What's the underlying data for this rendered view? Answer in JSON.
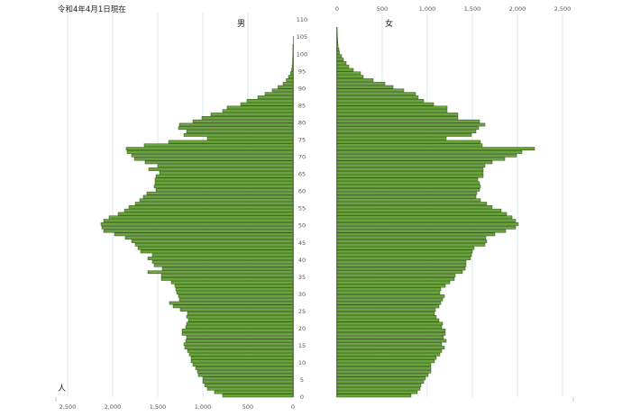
{
  "header": {
    "date_text": "令和4年4月1日現在"
  },
  "labels": {
    "male": "男",
    "female": "女",
    "unit": "人"
  },
  "colors": {
    "bar_fill": "#6aa43c",
    "bar_stroke": "#2e4f16",
    "grid": "#cfe3e8",
    "axis": "#333333"
  },
  "chart_data": {
    "type": "bar",
    "orientation": "horizontal",
    "layout": "population-pyramid",
    "title": "令和4年4月1日現在",
    "unit": "人",
    "x_axis": {
      "ticks": [
        0,
        500,
        1000,
        1500,
        2000,
        2500
      ],
      "range": [
        0,
        2500
      ],
      "grid": true
    },
    "y_axis": {
      "ticks": [
        0,
        5,
        10,
        15,
        20,
        25,
        30,
        35,
        40,
        45,
        50,
        55,
        60,
        65,
        70,
        75,
        80,
        85,
        90,
        95,
        100,
        105,
        110
      ],
      "range": [
        0,
        110
      ]
    },
    "ages": [
      0,
      1,
      2,
      3,
      4,
      5,
      6,
      7,
      8,
      9,
      10,
      11,
      12,
      13,
      14,
      15,
      16,
      17,
      18,
      19,
      20,
      21,
      22,
      23,
      24,
      25,
      26,
      27,
      28,
      29,
      30,
      31,
      32,
      33,
      34,
      35,
      36,
      37,
      38,
      39,
      40,
      41,
      42,
      43,
      44,
      45,
      46,
      47,
      48,
      49,
      50,
      51,
      52,
      53,
      54,
      55,
      56,
      57,
      58,
      59,
      60,
      61,
      62,
      63,
      64,
      65,
      66,
      67,
      68,
      69,
      70,
      71,
      72,
      73,
      74,
      75,
      76,
      77,
      78,
      79,
      80,
      81,
      82,
      83,
      84,
      85,
      86,
      87,
      88,
      89,
      90,
      91,
      92,
      93,
      94,
      95,
      96,
      97,
      98,
      99,
      100,
      101,
      102,
      103,
      104,
      105,
      106,
      107,
      108,
      109,
      110
    ],
    "series": [
      {
        "name": "男",
        "side": "left",
        "values": [
          780,
          870,
          950,
          980,
          1000,
          1000,
          1050,
          1060,
          1080,
          1110,
          1130,
          1130,
          1150,
          1170,
          1200,
          1210,
          1190,
          1180,
          1230,
          1230,
          1190,
          1180,
          1160,
          1180,
          1170,
          1250,
          1330,
          1370,
          1260,
          1270,
          1290,
          1300,
          1310,
          1350,
          1460,
          1460,
          1610,
          1450,
          1540,
          1560,
          1610,
          1560,
          1690,
          1720,
          1750,
          1790,
          1860,
          1980,
          2100,
          2120,
          2130,
          2100,
          2040,
          1940,
          1870,
          1820,
          1750,
          1700,
          1660,
          1620,
          1520,
          1540,
          1530,
          1530,
          1520,
          1480,
          1600,
          1500,
          1640,
          1760,
          1790,
          1840,
          1850,
          1650,
          1380,
          950,
          1210,
          1180,
          1270,
          1260,
          1110,
          1010,
          910,
          780,
          730,
          580,
          510,
          390,
          310,
          230,
          165,
          110,
          75,
          50,
          28,
          15,
          9,
          5,
          4,
          2,
          1,
          1,
          1,
          0,
          0,
          0,
          0,
          0,
          0,
          0,
          0
        ]
      },
      {
        "name": "女",
        "side": "right",
        "values": [
          820,
          890,
          920,
          930,
          960,
          980,
          1010,
          1040,
          1040,
          1040,
          1080,
          1100,
          1140,
          1160,
          1190,
          1160,
          1210,
          1180,
          1200,
          1200,
          1160,
          1170,
          1130,
          1100,
          1080,
          1090,
          1130,
          1150,
          1170,
          1190,
          1140,
          1150,
          1200,
          1250,
          1300,
          1310,
          1390,
          1420,
          1430,
          1430,
          1480,
          1490,
          1500,
          1520,
          1640,
          1660,
          1650,
          1750,
          1870,
          1980,
          2010,
          1980,
          1940,
          1880,
          1820,
          1720,
          1660,
          1590,
          1540,
          1550,
          1580,
          1590,
          1580,
          1560,
          1620,
          1620,
          1620,
          1640,
          1720,
          1860,
          1990,
          2050,
          2190,
          1610,
          1590,
          1210,
          1490,
          1540,
          1570,
          1640,
          1580,
          1340,
          1340,
          1220,
          1220,
          1070,
          960,
          900,
          870,
          740,
          620,
          530,
          400,
          290,
          260,
          180,
          130,
          100,
          70,
          50,
          25,
          20,
          10,
          8,
          5,
          3,
          2,
          1,
          0,
          0,
          0
        ]
      }
    ]
  }
}
